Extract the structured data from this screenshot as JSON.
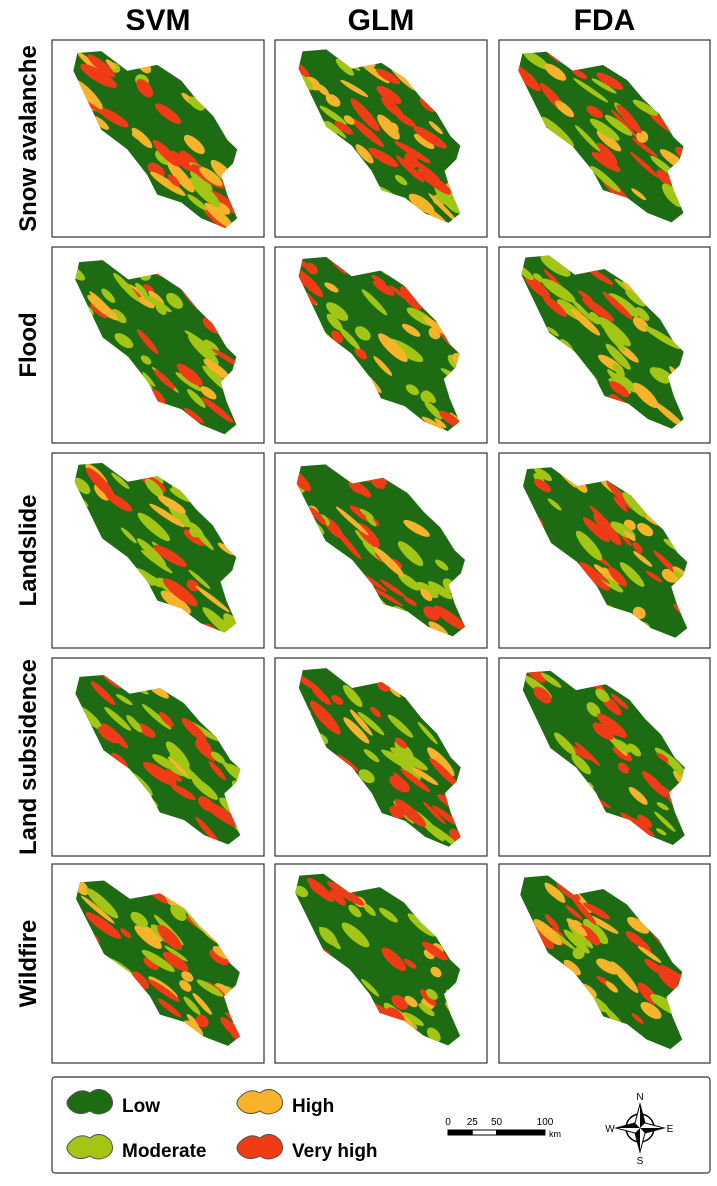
{
  "columns": [
    "SVM",
    "GLM",
    "FDA"
  ],
  "rows": [
    "Snow avalanche",
    "Flood",
    "Landslide",
    "Land subsidence",
    "Wildfire"
  ],
  "legend": [
    {
      "label": "Low",
      "color": "#1d6b12"
    },
    {
      "label": "High",
      "color": "#f7b42a"
    },
    {
      "label": "Moderate",
      "color": "#a3c614"
    },
    {
      "label": "Very high",
      "color": "#ef3b16"
    }
  ],
  "scale_bar": {
    "ticks": [
      0,
      25,
      50,
      100
    ],
    "unit": "km"
  },
  "compass": {
    "n": "N",
    "e": "E",
    "s": "S",
    "w": "W"
  }
}
